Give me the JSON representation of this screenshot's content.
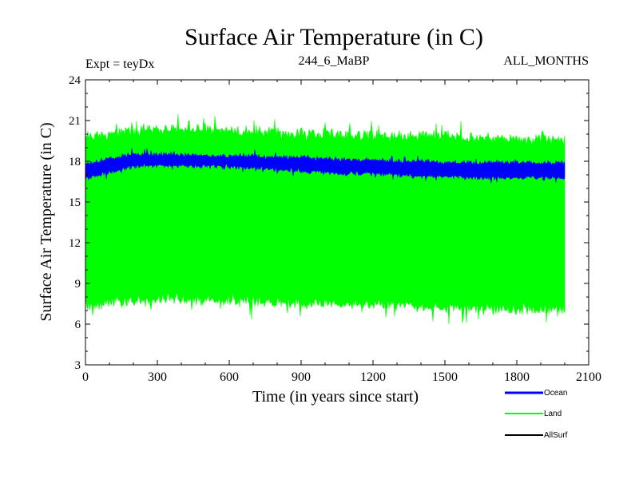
{
  "chart_data": {
    "type": "area",
    "title": "Surface Air Temperature (in C)",
    "subtitle_left": "Expt = teyDx",
    "subtitle_center": "244_6_MaBP",
    "subtitle_right": "ALL_MONTHS",
    "xlabel": "Time (in years since start)",
    "ylabel": "Surface Air Temperature (in C)",
    "xlim": [
      0,
      2100
    ],
    "ylim": [
      3,
      24
    ],
    "xticks": [
      "0",
      "300",
      "600",
      "900",
      "1200",
      "1500",
      "1800",
      "2100"
    ],
    "yticks": [
      "3",
      "6",
      "9",
      "12",
      "15",
      "18",
      "21",
      "24"
    ],
    "xtick_values": [
      0,
      300,
      600,
      900,
      1200,
      1500,
      1800,
      2100
    ],
    "ytick_values": [
      3,
      6,
      9,
      12,
      15,
      18,
      21,
      24
    ],
    "x_range": [
      0,
      2000
    ],
    "series": [
      {
        "name": "Land",
        "color": "#00ff00",
        "kind": "seasonal-envelope",
        "x": [
          0,
          50,
          100,
          200,
          300,
          400,
          500,
          600,
          700,
          800,
          900,
          1000,
          1100,
          1200,
          1300,
          1400,
          1500,
          1600,
          1700,
          1800,
          1900,
          2000
        ],
        "upper": [
          19.8,
          19.9,
          20.0,
          20.2,
          20.4,
          20.3,
          20.3,
          20.2,
          20.2,
          20.1,
          20.0,
          20.0,
          19.9,
          19.9,
          19.8,
          19.8,
          19.8,
          19.7,
          19.7,
          19.7,
          19.6,
          19.6
        ],
        "lower": [
          7.3,
          7.4,
          7.6,
          7.7,
          7.8,
          7.9,
          7.8,
          7.8,
          7.7,
          7.6,
          7.6,
          7.5,
          7.5,
          7.5,
          7.4,
          7.3,
          7.2,
          7.2,
          7.2,
          7.1,
          7.0,
          7.1
        ]
      },
      {
        "name": "Ocean",
        "color": "#0000ff",
        "kind": "band",
        "x": [
          0,
          50,
          100,
          200,
          300,
          400,
          500,
          600,
          700,
          800,
          900,
          1000,
          1100,
          1200,
          1300,
          1400,
          1500,
          1600,
          1700,
          1800,
          1900,
          2000
        ],
        "upper": [
          17.8,
          18.0,
          18.2,
          18.5,
          18.5,
          18.5,
          18.4,
          18.4,
          18.4,
          18.3,
          18.3,
          18.2,
          18.1,
          18.1,
          18.0,
          18.0,
          17.9,
          17.9,
          17.9,
          17.9,
          17.9,
          17.9
        ],
        "lower": [
          16.7,
          16.9,
          17.2,
          17.6,
          17.7,
          17.7,
          17.6,
          17.6,
          17.5,
          17.4,
          17.3,
          17.2,
          17.1,
          17.1,
          17.0,
          16.9,
          16.9,
          16.8,
          16.8,
          16.8,
          16.8,
          16.8
        ]
      },
      {
        "name": "AllSurf",
        "color": "#000000",
        "kind": "legend-only"
      }
    ],
    "legend": [
      "Ocean",
      "Land",
      "AllSurf"
    ],
    "legend_placement": "bottom-right"
  }
}
